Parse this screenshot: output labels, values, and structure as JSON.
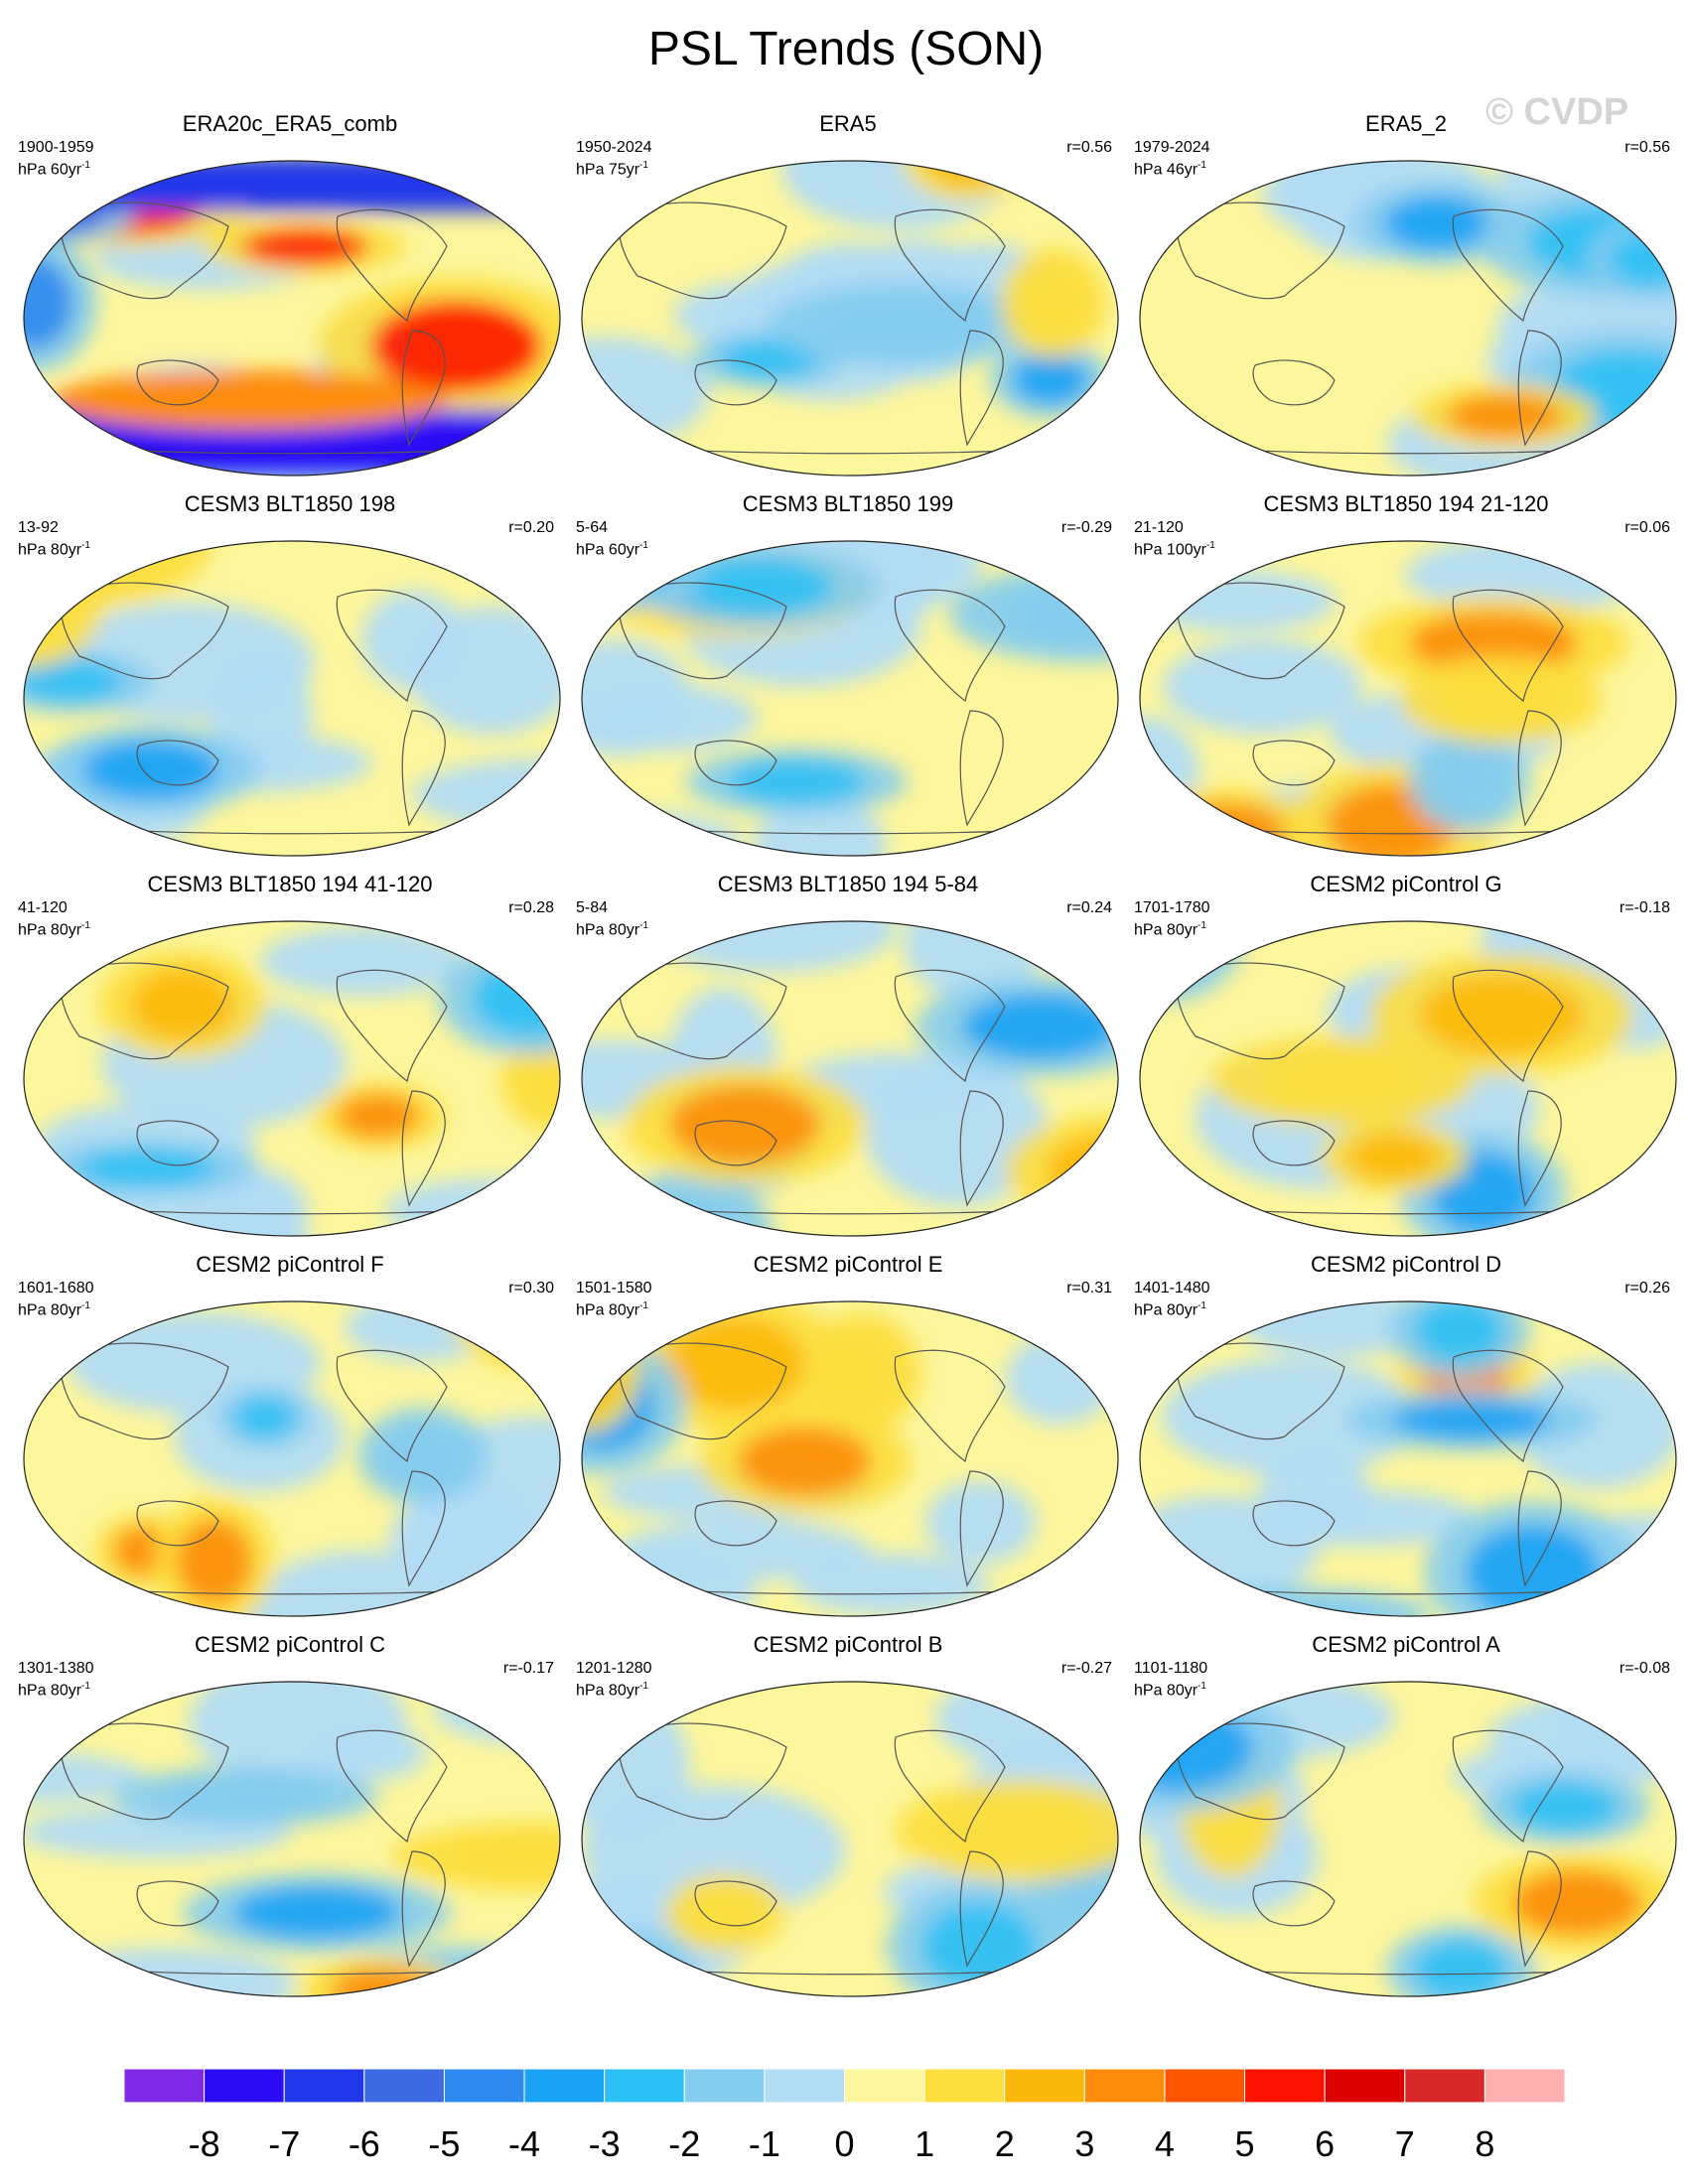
{
  "title": "PSL Trends (SON)",
  "watermark": "© CVDP",
  "chart_data": {
    "type": "filled-contour map panels (trend)",
    "variable": "PSL",
    "season": "SON",
    "projection": "Robinson-like global maps (Pacific-centered)",
    "units_note": "hPa per period shown in each panel",
    "colorbar": {
      "levels": [
        -8,
        -7,
        -6,
        -5,
        -4,
        -3,
        -2,
        -1,
        0,
        1,
        2,
        3,
        4,
        5,
        6,
        7,
        8
      ],
      "labels": [
        "-8",
        "-7",
        "-6",
        "-5",
        "-4",
        "-3",
        "-2",
        "-1",
        "0",
        "1",
        "2",
        "3",
        "4",
        "5",
        "6",
        "7",
        "8"
      ],
      "colors": [
        "#7e2ae6",
        "#2c0bf5",
        "#2038ea",
        "#3c6ae2",
        "#2f8af0",
        "#1aa2f4",
        "#2cc0f4",
        "#84ccf0",
        "#b2dcf4",
        "#fcf69c",
        "#fcde3e",
        "#fcb80a",
        "#fc8c0a",
        "#fc5600",
        "#fc1200",
        "#dc0000",
        "#d82828",
        "#fcb0b0"
      ]
    },
    "panels": [
      {
        "title": "ERA20c_ERA5_comb",
        "period": "1900-1959",
        "units": "hPa 60yr",
        "corr": ""
      },
      {
        "title": "ERA5",
        "period": "1950-2024",
        "units": "hPa 75yr",
        "corr": "r=0.56"
      },
      {
        "title": "ERA5_2",
        "period": "1979-2024",
        "units": "hPa 46yr",
        "corr": "r=0.56"
      },
      {
        "title": "CESM3 BLT1850 198",
        "period": "13-92",
        "units": "hPa 80yr",
        "corr": "r=0.20"
      },
      {
        "title": "CESM3 BLT1850 199",
        "period": "5-64",
        "units": "hPa 60yr",
        "corr": "r=-0.29"
      },
      {
        "title": "CESM3 BLT1850 194 21-120",
        "period": "21-120",
        "units": "hPa 100yr",
        "corr": "r=0.06"
      },
      {
        "title": "CESM3 BLT1850 194 41-120",
        "period": "41-120",
        "units": "hPa 80yr",
        "corr": "r=0.28"
      },
      {
        "title": "CESM3 BLT1850 194 5-84",
        "period": "5-84",
        "units": "hPa 80yr",
        "corr": "r=0.24"
      },
      {
        "title": "CESM2 piControl G",
        "period": "1701-1780",
        "units": "hPa 80yr",
        "corr": "r=-0.18"
      },
      {
        "title": "CESM2 piControl F",
        "period": "1601-1680",
        "units": "hPa 80yr",
        "corr": "r=0.30"
      },
      {
        "title": "CESM2 piControl E",
        "period": "1501-1580",
        "units": "hPa 80yr",
        "corr": "r=0.31"
      },
      {
        "title": "CESM2 piControl D",
        "period": "1401-1480",
        "units": "hPa 80yr",
        "corr": "r=0.26"
      },
      {
        "title": "CESM2 piControl C",
        "period": "1301-1380",
        "units": "hPa 80yr",
        "corr": "r=-0.17"
      },
      {
        "title": "CESM2 piControl B",
        "period": "1201-1280",
        "units": "hPa 80yr",
        "corr": "r=-0.27"
      },
      {
        "title": "CESM2 piControl A",
        "period": "1101-1180",
        "units": "hPa 80yr",
        "corr": "r=-0.08"
      }
    ]
  }
}
